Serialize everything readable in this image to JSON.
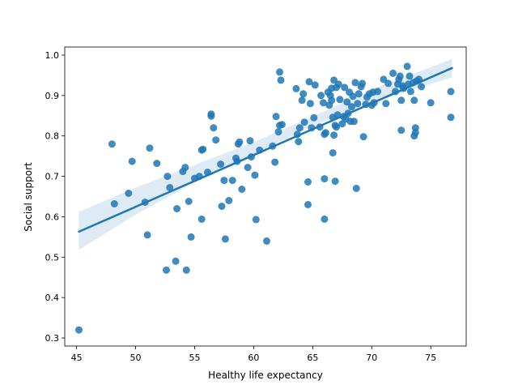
{
  "chart_data": {
    "type": "scatter",
    "title": "",
    "xlabel": "Healthy life expectancy",
    "ylabel": "Social support",
    "xlim": [
      44,
      78
    ],
    "ylim": [
      0.28,
      1.02
    ],
    "x_ticks": [
      45,
      50,
      55,
      60,
      65,
      70,
      75
    ],
    "y_ticks": [
      0.3,
      0.4,
      0.5,
      0.6,
      0.7,
      0.8,
      0.9,
      1.0
    ],
    "grid": false,
    "colors": {
      "points": "#1f77b4",
      "fit": "#1f77b4",
      "band": "#1f77b4"
    },
    "regression_line": {
      "x": [
        45.2,
        76.8
      ],
      "y": [
        0.563,
        0.968
      ]
    },
    "confidence_band": {
      "x": [
        45.2,
        50,
        55,
        60,
        65,
        70,
        76.8
      ],
      "lower": [
        0.518,
        0.605,
        0.685,
        0.755,
        0.825,
        0.882,
        0.945
      ],
      "upper": [
        0.612,
        0.672,
        0.728,
        0.785,
        0.848,
        0.915,
        0.99
      ]
    },
    "points": [
      [
        45.2,
        0.32
      ],
      [
        48.0,
        0.78
      ],
      [
        48.2,
        0.632
      ],
      [
        49.4,
        0.658
      ],
      [
        49.7,
        0.737
      ],
      [
        50.8,
        0.636
      ],
      [
        51.0,
        0.555
      ],
      [
        51.2,
        0.77
      ],
      [
        51.8,
        0.732
      ],
      [
        52.6,
        0.468
      ],
      [
        52.7,
        0.7
      ],
      [
        52.9,
        0.672
      ],
      [
        53.4,
        0.49
      ],
      [
        53.5,
        0.62
      ],
      [
        54.0,
        0.712
      ],
      [
        54.2,
        0.722
      ],
      [
        54.3,
        0.468
      ],
      [
        54.5,
        0.638
      ],
      [
        54.7,
        0.55
      ],
      [
        55.0,
        0.695
      ],
      [
        55.4,
        0.7
      ],
      [
        55.6,
        0.594
      ],
      [
        55.6,
        0.765
      ],
      [
        55.7,
        0.767
      ],
      [
        56.1,
        0.71
      ],
      [
        56.4,
        0.854
      ],
      [
        56.4,
        0.849
      ],
      [
        56.6,
        0.82
      ],
      [
        56.8,
        0.79
      ],
      [
        57.2,
        0.73
      ],
      [
        57.3,
        0.626
      ],
      [
        57.5,
        0.69
      ],
      [
        57.6,
        0.545
      ],
      [
        57.9,
        0.64
      ],
      [
        58.2,
        0.69
      ],
      [
        58.5,
        0.745
      ],
      [
        58.6,
        0.737
      ],
      [
        58.7,
        0.78
      ],
      [
        58.8,
        0.785
      ],
      [
        59.0,
        0.668
      ],
      [
        59.5,
        0.722
      ],
      [
        59.7,
        0.788
      ],
      [
        59.8,
        0.748
      ],
      [
        60.1,
        0.703
      ],
      [
        60.2,
        0.593
      ],
      [
        60.5,
        0.765
      ],
      [
        61.1,
        0.54
      ],
      [
        61.6,
        0.775
      ],
      [
        61.8,
        0.735
      ],
      [
        61.9,
        0.848
      ],
      [
        62.1,
        0.81
      ],
      [
        62.2,
        0.958
      ],
      [
        62.2,
        0.826
      ],
      [
        62.3,
        0.938
      ],
      [
        62.4,
        0.828
      ],
      [
        63.6,
        0.917
      ],
      [
        63.7,
        0.804
      ],
      [
        63.8,
        0.786
      ],
      [
        63.9,
        0.82
      ],
      [
        64.1,
        0.888
      ],
      [
        64.2,
        0.904
      ],
      [
        64.3,
        0.834
      ],
      [
        64.6,
        0.63
      ],
      [
        64.6,
        0.686
      ],
      [
        64.7,
        0.934
      ],
      [
        64.8,
        0.88
      ],
      [
        64.9,
        0.82
      ],
      [
        65.1,
        0.845
      ],
      [
        65.2,
        0.926
      ],
      [
        65.6,
        0.822
      ],
      [
        65.7,
        0.9
      ],
      [
        65.9,
        0.882
      ],
      [
        66.0,
        0.594
      ],
      [
        66.0,
        0.694
      ],
      [
        66.0,
        0.804
      ],
      [
        66.1,
        0.808
      ],
      [
        66.3,
        0.908
      ],
      [
        66.4,
        0.876
      ],
      [
        66.5,
        0.9
      ],
      [
        66.6,
        0.918
      ],
      [
        66.6,
        0.888
      ],
      [
        66.7,
        0.758
      ],
      [
        66.7,
        0.846
      ],
      [
        66.8,
        0.938
      ],
      [
        66.8,
        0.802
      ],
      [
        66.9,
        0.688
      ],
      [
        66.9,
        0.826
      ],
      [
        67.0,
        0.92
      ],
      [
        67.0,
        0.822
      ],
      [
        67.1,
        0.852
      ],
      [
        67.2,
        0.928
      ],
      [
        67.3,
        0.89
      ],
      [
        67.5,
        0.83
      ],
      [
        67.6,
        0.848
      ],
      [
        67.7,
        0.92
      ],
      [
        67.8,
        0.842
      ],
      [
        67.9,
        0.884
      ],
      [
        68.0,
        0.856
      ],
      [
        68.1,
        0.908
      ],
      [
        68.2,
        0.836
      ],
      [
        68.3,
        0.872
      ],
      [
        68.4,
        0.898
      ],
      [
        68.5,
        0.836
      ],
      [
        68.6,
        0.932
      ],
      [
        68.7,
        0.67
      ],
      [
        68.8,
        0.88
      ],
      [
        68.9,
        0.904
      ],
      [
        69.1,
        0.922
      ],
      [
        69.2,
        0.93
      ],
      [
        69.3,
        0.798
      ],
      [
        69.5,
        0.878
      ],
      [
        69.6,
        0.896
      ],
      [
        69.8,
        0.904
      ],
      [
        70.0,
        0.876
      ],
      [
        70.1,
        0.908
      ],
      [
        70.2,
        0.882
      ],
      [
        70.5,
        0.91
      ],
      [
        71.0,
        0.94
      ],
      [
        71.2,
        0.88
      ],
      [
        71.4,
        0.93
      ],
      [
        71.8,
        0.955
      ],
      [
        72.0,
        0.91
      ],
      [
        72.2,
        0.928
      ],
      [
        72.3,
        0.94
      ],
      [
        72.4,
        0.948
      ],
      [
        72.5,
        0.814
      ],
      [
        72.5,
        0.888
      ],
      [
        72.6,
        0.924
      ],
      [
        72.7,
        0.918
      ],
      [
        73.0,
        0.972
      ],
      [
        73.1,
        0.928
      ],
      [
        73.2,
        0.948
      ],
      [
        73.3,
        0.91
      ],
      [
        73.5,
        0.932
      ],
      [
        73.6,
        0.888
      ],
      [
        73.6,
        0.8
      ],
      [
        73.7,
        0.82
      ],
      [
        73.7,
        0.808
      ],
      [
        73.8,
        0.936
      ],
      [
        74.0,
        0.94
      ],
      [
        74.2,
        0.922
      ],
      [
        75.0,
        0.882
      ],
      [
        76.7,
        0.91
      ],
      [
        76.7,
        0.846
      ]
    ]
  }
}
